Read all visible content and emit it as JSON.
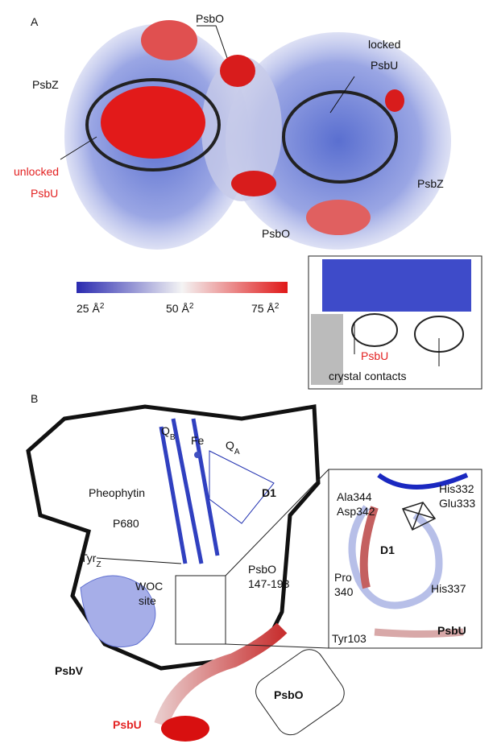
{
  "panel_a": {
    "label": "A",
    "structure_labels": [
      "PsbO",
      "locked",
      "PsbU",
      "PsbZ",
      "unlocked",
      "PsbU",
      "PsbZ",
      "PsbO"
    ],
    "colorbar": [
      {
        "text": "25 Å",
        "sup": "2"
      },
      {
        "text": "50 Å",
        "sup": "2"
      },
      {
        "text": "75 Å",
        "sup": "2"
      }
    ],
    "inset": {
      "psbu": "PsbU",
      "contacts": "crystal contacts"
    }
  },
  "panel_b": {
    "label": "B",
    "qb": {
      "text": "Q",
      "sub": "B"
    },
    "fe": "Fe",
    "qa": {
      "text": "Q",
      "sub": "A"
    },
    "pheophytin": "Pheophytin",
    "d1": "D1",
    "p680": "P680",
    "tyrz": {
      "text": "Tyr",
      "sub": "Z"
    },
    "psbo_range": [
      "PsbO",
      "147-193"
    ],
    "woc": [
      "WOC",
      "site"
    ],
    "psbv": "PsbV",
    "psbu": "PsbU",
    "psbo": "PsbO",
    "zoom": {
      "residues": [
        "Ala344",
        "Asp342",
        "His332",
        "Glu333",
        "Pro",
        "340",
        "His337",
        "Tyr103"
      ],
      "d1": "D1",
      "psbu": "PsbU"
    }
  }
}
